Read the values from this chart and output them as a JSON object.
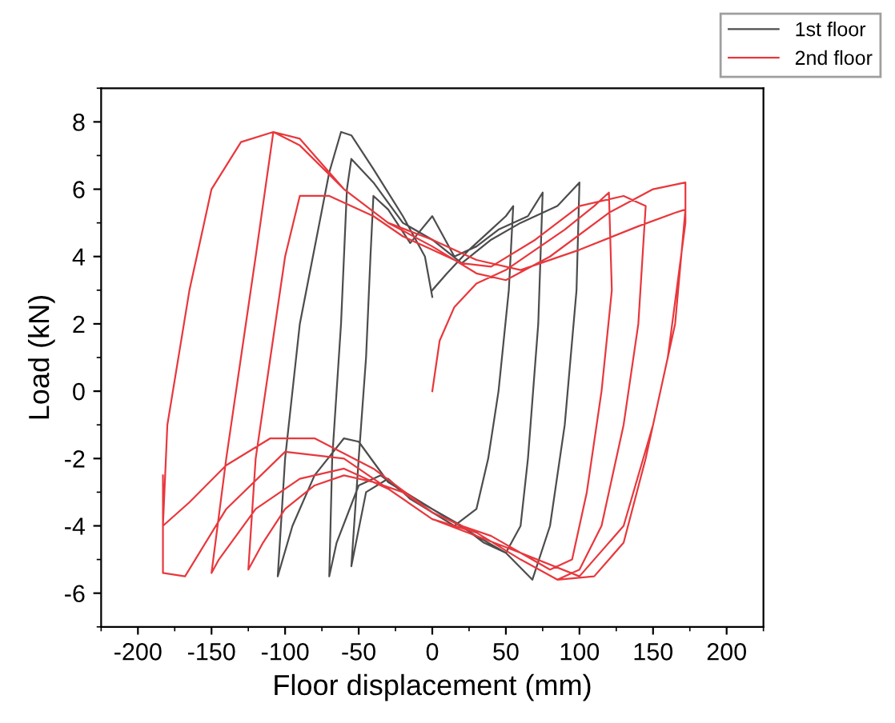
{
  "chart_data": {
    "type": "line",
    "xlabel": "Floor displacement (mm)",
    "ylabel": "Load (kN)",
    "xlim": [
      -225,
      225
    ],
    "ylim": [
      -7,
      9
    ],
    "xticks": [
      -200,
      -150,
      -100,
      -50,
      0,
      50,
      100,
      150,
      200
    ],
    "yticks": [
      -6,
      -4,
      -2,
      0,
      2,
      4,
      6,
      8
    ],
    "grid": false,
    "legend": "top right",
    "marker": "none",
    "line_style": "solid",
    "series": [
      {
        "name": "1st floor",
        "color": "#4d4d4d",
        "x": [
          0,
          10,
          25,
          40,
          50,
          55,
          52,
          45,
          38,
          30,
          15,
          0,
          -15,
          -30,
          -45,
          -55,
          -50,
          -45,
          -42,
          -40,
          -30,
          -15,
          0,
          15,
          30,
          45,
          65,
          75,
          72,
          65,
          60,
          50,
          35,
          20,
          0,
          -20,
          -35,
          -50,
          -65,
          -70,
          -68,
          -62,
          -58,
          -55,
          -40,
          -20,
          0,
          20,
          40,
          60,
          85,
          100,
          98,
          90,
          80,
          68,
          50,
          30,
          0,
          -30,
          -50,
          -60,
          -80,
          -95,
          -105,
          -100,
          -90,
          -70,
          -62,
          -55,
          -40,
          -20,
          -5,
          0
        ],
        "values": [
          3.0,
          3.5,
          4.2,
          4.8,
          5.2,
          5.5,
          3,
          0,
          -2,
          -3.5,
          -4.0,
          -3.6,
          -3.2,
          -2.6,
          -3.0,
          -5.2,
          -2,
          1,
          4,
          5.8,
          5.4,
          4.4,
          5.2,
          4.0,
          4.3,
          4.8,
          5.2,
          5.9,
          2,
          -2,
          -4,
          -4.8,
          -4.5,
          -4.0,
          -3.5,
          -3.0,
          -2.5,
          -2.8,
          -4.5,
          -5.5,
          -2,
          2,
          6,
          6.9,
          6.2,
          5.0,
          4.5,
          3.8,
          4.5,
          5.0,
          5.5,
          6.2,
          3,
          -1,
          -4,
          -5.6,
          -4.8,
          -4.3,
          -3.5,
          -2.7,
          -1.5,
          -1.4,
          -2.5,
          -4,
          -5.5,
          -2,
          2,
          6.5,
          7.7,
          7.6,
          6.6,
          5.2,
          4.0,
          2.8
        ]
      },
      {
        "name": "2nd floor",
        "color": "#e8383d",
        "x": [
          0,
          5,
          15,
          30,
          50,
          70,
          90,
          110,
          120,
          122,
          115,
          105,
          95,
          80,
          60,
          40,
          20,
          0,
          -20,
          -40,
          -60,
          -80,
          -100,
          -115,
          -125,
          -120,
          -110,
          -100,
          -90,
          -70,
          -40,
          -20,
          0,
          20,
          40,
          70,
          100,
          130,
          145,
          140,
          130,
          115,
          100,
          85,
          60,
          30,
          0,
          -30,
          -60,
          -90,
          -120,
          -145,
          -150,
          -140,
          -130,
          -120,
          -108,
          -90,
          -60,
          -30,
          0,
          30,
          50,
          80,
          120,
          150,
          172,
          172,
          160,
          145,
          130,
          110,
          85,
          60,
          30,
          0,
          -40,
          -80,
          -110,
          -140,
          -165,
          -183,
          -180,
          -165,
          -150,
          -130,
          -108,
          -90,
          -60,
          -30,
          0,
          30,
          60,
          100,
          140,
          165,
          172,
          165,
          150,
          130,
          100,
          60,
          0,
          -60,
          -100,
          -140,
          -168,
          -183,
          -183
        ],
        "values": [
          0,
          1.5,
          2.5,
          3.2,
          3.6,
          4.2,
          4.8,
          5.5,
          5.9,
          3,
          0,
          -3,
          -5.0,
          -5.3,
          -4.8,
          -4.3,
          -4.0,
          -3.6,
          -3.0,
          -2.7,
          -2.5,
          -2.8,
          -3.5,
          -4.5,
          -5.3,
          -2,
          1,
          4,
          5.8,
          5.8,
          5.2,
          4.6,
          4.2,
          3.8,
          3.7,
          4.5,
          5.5,
          5.8,
          5.5,
          2,
          -1,
          -4,
          -5.3,
          -5.6,
          -5.0,
          -4.2,
          -3.8,
          -2.9,
          -2.3,
          -2.6,
          -3.5,
          -5.0,
          -5.4,
          -2,
          1,
          4,
          7.7,
          7.5,
          6.0,
          5.0,
          4.3,
          3.5,
          3.3,
          4.0,
          5.3,
          6.0,
          6.2,
          5.0,
          1,
          -2,
          -4.5,
          -5.5,
          -5.6,
          -5.0,
          -4.2,
          -3.6,
          -2.3,
          -1.4,
          -1.4,
          -2.2,
          -3.3,
          -4.0,
          -1,
          3,
          6,
          7.4,
          7.7,
          7.3,
          6.0,
          5.0,
          4.5,
          3.9,
          3.6,
          4.2,
          4.9,
          5.3,
          5.4,
          2,
          -1,
          -4,
          -5.5,
          -4.8,
          -3.8,
          -2.0,
          -1.8,
          -3.5,
          -5.5,
          -5.4,
          -2.5
        ]
      }
    ]
  }
}
